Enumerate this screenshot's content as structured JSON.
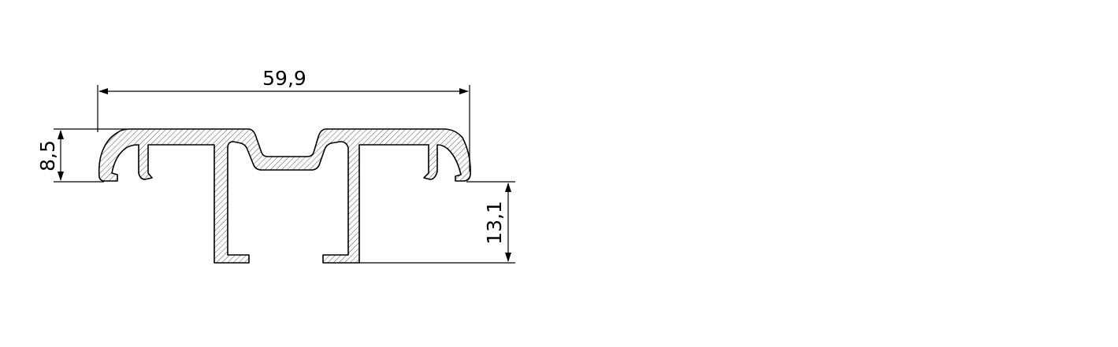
{
  "drawing": {
    "dimensions": {
      "width_label": "59,9",
      "height_top_label": "8,5",
      "height_bottom_label": "13,1"
    },
    "colors": {
      "line": "#000000",
      "hatch": "#555555",
      "background": "#ffffff"
    }
  }
}
